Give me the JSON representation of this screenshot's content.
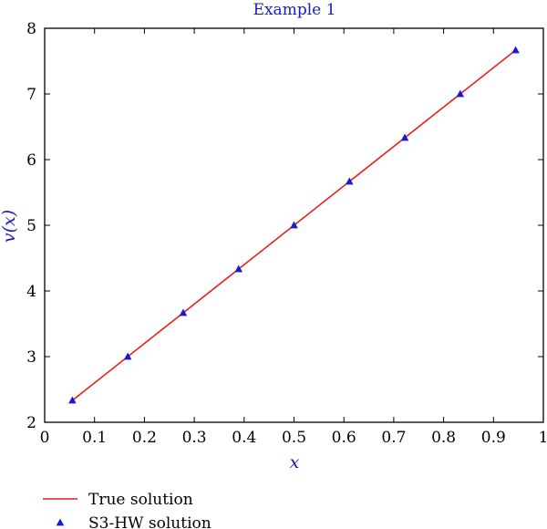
{
  "chart_data": {
    "type": "line",
    "title": "Example 1",
    "xlabel": "x",
    "ylabel": "v(x)",
    "xlim": [
      0,
      1
    ],
    "ylim": [
      2,
      8
    ],
    "xticks": [
      "0",
      "0.1",
      "0.2",
      "0.3",
      "0.4",
      "0.5",
      "0.6",
      "0.7",
      "0.8",
      "0.9",
      "1"
    ],
    "yticks": [
      "2",
      "3",
      "4",
      "5",
      "6",
      "7",
      "8"
    ],
    "grid": false,
    "legend_position": "bottom",
    "series": [
      {
        "name": "True solution",
        "kind": "line",
        "color": "#e8211b",
        "x": [
          0.0556,
          0.9444
        ],
        "y": [
          2.3333,
          7.6667
        ]
      },
      {
        "name": "S3-HW solution",
        "kind": "marker",
        "marker": "triangle",
        "color": "#1a1acd",
        "x": [
          0.0556,
          0.1667,
          0.2778,
          0.3889,
          0.5,
          0.6111,
          0.7222,
          0.8333,
          0.9444
        ],
        "y": [
          2.3333,
          3.0,
          3.6667,
          4.3333,
          5.0,
          5.6667,
          6.3333,
          7.0,
          7.6667
        ]
      }
    ],
    "colors": {
      "title": "#1a1acd",
      "axis_label": "#1a1acd",
      "axes": "#000000"
    }
  }
}
